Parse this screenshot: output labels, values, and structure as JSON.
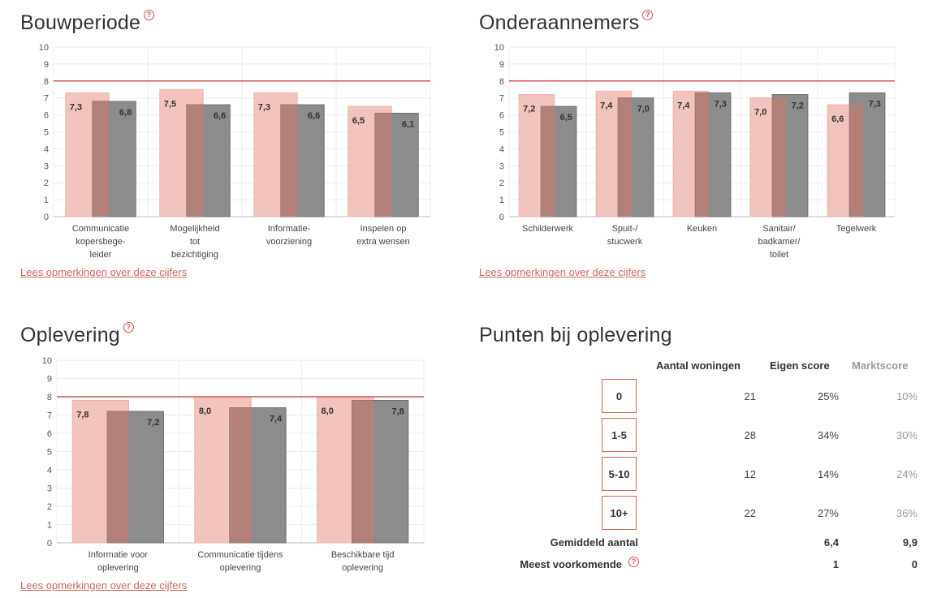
{
  "sections": {
    "bouwperiode": {
      "title": "Bouwperiode",
      "help": "?",
      "link": "Lees opmerkingen over deze cijfers"
    },
    "onderaannemers": {
      "title": "Onderaannemers",
      "help": "?",
      "link": "Lees opmerkingen over deze cijfers"
    },
    "oplevering": {
      "title": "Oplevering",
      "help": "?",
      "link": "Lees opmerkingen over deze cijfers"
    },
    "punten": {
      "title": "Punten bij oplevering"
    }
  },
  "chart_data": [
    {
      "id": "bouwperiode",
      "type": "bar",
      "title": "Bouwperiode",
      "ylim": [
        0,
        10
      ],
      "yticks": [
        "0",
        "1",
        "2",
        "3",
        "4",
        "5",
        "6",
        "7",
        "8",
        "9",
        "10"
      ],
      "target_line": 8,
      "categories": [
        [
          "Communicatie",
          "kopersbege-",
          "leider"
        ],
        [
          "Mogelijkheid",
          "tot",
          "bezichtiging"
        ],
        [
          "Informatie-",
          "voorziening"
        ],
        [
          "Inspelen op",
          "extra wensen"
        ]
      ],
      "series": [
        {
          "name": "Eigen score",
          "values": [
            7.3,
            7.5,
            7.3,
            6.5
          ],
          "labels": [
            "7,3",
            "7,5",
            "7,3",
            "6,5"
          ],
          "color": "#f2c4bd"
        },
        {
          "name": "Marktscore",
          "values": [
            6.8,
            6.6,
            6.6,
            6.1
          ],
          "labels": [
            "6,8",
            "6,6",
            "6,6",
            "6,1"
          ],
          "color": "#8c8c8c"
        }
      ]
    },
    {
      "id": "onderaannemers",
      "type": "bar",
      "title": "Onderaannemers",
      "ylim": [
        0,
        10
      ],
      "yticks": [
        "0",
        "1",
        "2",
        "3",
        "4",
        "5",
        "6",
        "7",
        "8",
        "9",
        "10"
      ],
      "target_line": 8,
      "categories": [
        [
          "Schilderwerk"
        ],
        [
          "Spuit-/",
          "stucwerk"
        ],
        [
          "Keuken"
        ],
        [
          "Sanitair/",
          "badkamer/",
          "toilet"
        ],
        [
          "Tegelwerk"
        ]
      ],
      "series": [
        {
          "name": "Eigen score",
          "values": [
            7.2,
            7.4,
            7.4,
            7.0,
            6.6
          ],
          "labels": [
            "7,2",
            "7,4",
            "7,4",
            "7,0",
            "6,6"
          ],
          "color": "#f2c4bd"
        },
        {
          "name": "Marktscore",
          "values": [
            6.5,
            7.0,
            7.3,
            7.2,
            7.3
          ],
          "labels": [
            "6,5",
            "7,0",
            "7,3",
            "7,2",
            "7,3"
          ],
          "color": "#8c8c8c"
        }
      ]
    },
    {
      "id": "oplevering",
      "type": "bar",
      "title": "Oplevering",
      "ylim": [
        0,
        10
      ],
      "yticks": [
        "0",
        "1",
        "2",
        "3",
        "4",
        "5",
        "6",
        "7",
        "8",
        "9",
        "10"
      ],
      "target_line": 8,
      "categories": [
        [
          "Informatie voor",
          "oplevering"
        ],
        [
          "Communicatie tijdens",
          "oplevering"
        ],
        [
          "Beschikbare tijd",
          "oplevering"
        ]
      ],
      "series": [
        {
          "name": "Eigen score",
          "values": [
            7.8,
            8.0,
            8.0
          ],
          "labels": [
            "7,8",
            "8,0",
            "8,0"
          ],
          "color": "#f2c4bd"
        },
        {
          "name": "Marktscore",
          "values": [
            7.2,
            7.4,
            7.8
          ],
          "labels": [
            "7,2",
            "7,4",
            "7,8"
          ],
          "color": "#8c8c8c"
        }
      ]
    }
  ],
  "punten_table": {
    "headers": {
      "aantal": "Aantal woningen",
      "eigen": "Eigen score",
      "markt": "Marktscore"
    },
    "rows": [
      {
        "range": "0",
        "aantal": "21",
        "eigen": "25%",
        "markt": "10%"
      },
      {
        "range": "1-5",
        "aantal": "28",
        "eigen": "34%",
        "markt": "30%"
      },
      {
        "range": "5-10",
        "aantal": "12",
        "eigen": "14%",
        "markt": "24%"
      },
      {
        "range": "10+",
        "aantal": "22",
        "eigen": "27%",
        "markt": "36%"
      }
    ],
    "gemiddeld": {
      "label": "Gemiddeld aantal",
      "eigen": "6,4",
      "markt": "9,9"
    },
    "meest": {
      "label": "Meest voorkomende",
      "help": "?",
      "eigen": "1",
      "markt": "0"
    }
  },
  "colors": {
    "accent": "#d9534f",
    "eigen": "#f2c4bd",
    "markt": "#8c8c8c",
    "overlap": "#b38079",
    "link": "#c9685a"
  }
}
